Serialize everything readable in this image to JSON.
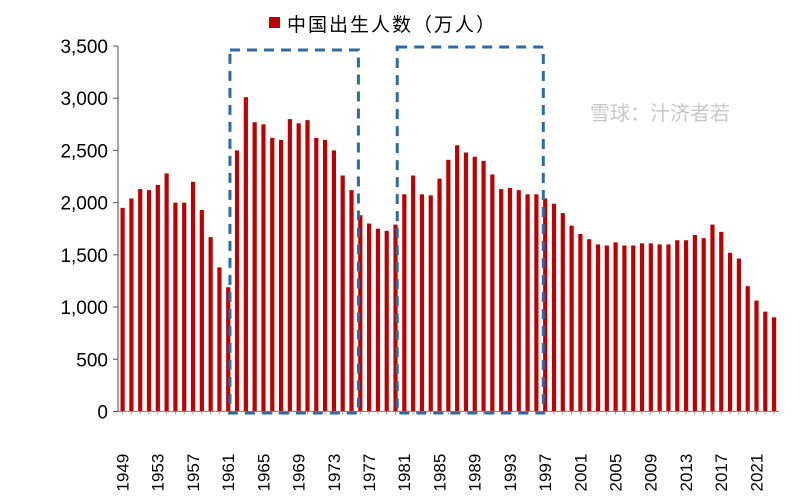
{
  "chart_data": {
    "type": "bar",
    "title": "",
    "xlabel": "",
    "ylabel": "",
    "ylim": [
      0,
      3500
    ],
    "yticks": [
      "0",
      "500",
      "1,000",
      "1,500",
      "2,000",
      "2,500",
      "3,000",
      "3,500"
    ],
    "ytick_values": [
      0,
      500,
      1000,
      1500,
      2000,
      2500,
      3000,
      3500
    ],
    "xtick_labels": [
      "1949",
      "1953",
      "1957",
      "1961",
      "1965",
      "1969",
      "1973",
      "1977",
      "1981",
      "1985",
      "1989",
      "1993",
      "1997",
      "2001",
      "2005",
      "2009",
      "2013",
      "2017",
      "2021"
    ],
    "grid": false,
    "legend_placement": "top",
    "bar_color": "#C00000",
    "highlight_box_color": "#2E6AA3",
    "highlight_ranges": [
      [
        1962,
        1975
      ],
      [
        1981,
        1996
      ]
    ],
    "categories": [
      1949,
      1950,
      1951,
      1952,
      1953,
      1954,
      1955,
      1956,
      1957,
      1958,
      1959,
      1960,
      1961,
      1962,
      1963,
      1964,
      1965,
      1966,
      1967,
      1968,
      1969,
      1970,
      1971,
      1972,
      1973,
      1974,
      1975,
      1976,
      1977,
      1978,
      1979,
      1980,
      1981,
      1982,
      1983,
      1984,
      1985,
      1986,
      1987,
      1988,
      1989,
      1990,
      1991,
      1992,
      1993,
      1994,
      1995,
      1996,
      1997,
      1998,
      1999,
      2000,
      2001,
      2002,
      2003,
      2004,
      2005,
      2006,
      2007,
      2008,
      2009,
      2010,
      2011,
      2012,
      2013,
      2014,
      2015,
      2016,
      2017,
      2018,
      2019,
      2020,
      2021,
      2022,
      2023
    ],
    "series": [
      {
        "name": "中国出生人数（万人）",
        "values": [
          1950,
          2040,
          2130,
          2120,
          2170,
          2280,
          2000,
          2000,
          2200,
          1930,
          1670,
          1380,
          1190,
          2500,
          3010,
          2770,
          2750,
          2620,
          2600,
          2800,
          2760,
          2790,
          2620,
          2600,
          2500,
          2260,
          2120,
          1880,
          1800,
          1750,
          1730,
          1790,
          2080,
          2260,
          2080,
          2070,
          2230,
          2410,
          2550,
          2480,
          2440,
          2400,
          2270,
          2130,
          2140,
          2120,
          2080,
          2080,
          2040,
          1990,
          1900,
          1780,
          1700,
          1650,
          1600,
          1590,
          1620,
          1590,
          1590,
          1610,
          1610,
          1600,
          1600,
          1640,
          1640,
          1690,
          1660,
          1790,
          1720,
          1520,
          1465,
          1200,
          1062,
          956,
          902
        ]
      }
    ]
  },
  "watermark": "雪球：汁济者若"
}
